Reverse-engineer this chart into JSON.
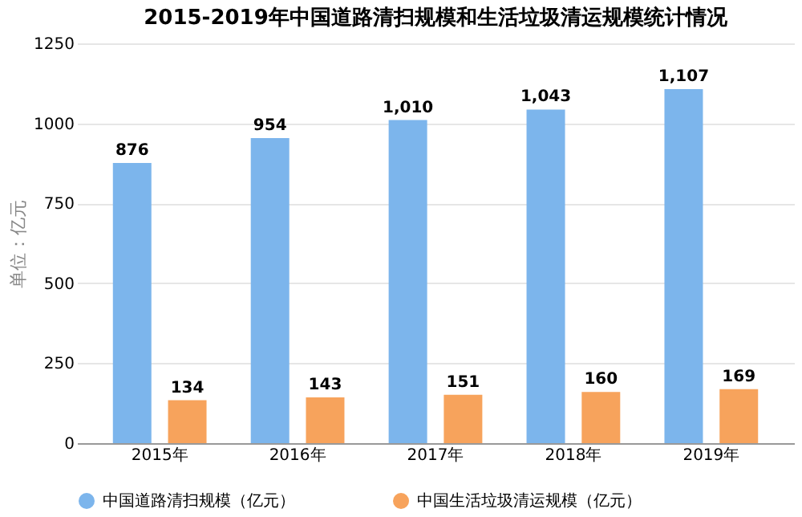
{
  "chart_data": {
    "type": "bar",
    "title": "2015-2019年中国道路清扫规模和生活垃圾清运规模统计情况",
    "ylabel": "单位：亿元",
    "categories": [
      "2015年",
      "2016年",
      "2017年",
      "2018年",
      "2019年"
    ],
    "series": [
      {
        "name": "中国道路清扫规模（亿元）",
        "color": "#7cb5ec",
        "values": [
          876,
          954,
          1010,
          1043,
          1107
        ],
        "value_labels": [
          "876",
          "954",
          "1,010",
          "1,043",
          "1,107"
        ]
      },
      {
        "name": "中国生活垃圾清运规模（亿元）",
        "color": "#f7a35c",
        "values": [
          134,
          143,
          151,
          160,
          169
        ],
        "value_labels": [
          "134",
          "143",
          "151",
          "160",
          "169"
        ]
      }
    ],
    "ylim": [
      0,
      1250
    ],
    "yticks": [
      0,
      250,
      500,
      750,
      1000,
      1250
    ],
    "grid": "y",
    "legend": "bottom"
  }
}
